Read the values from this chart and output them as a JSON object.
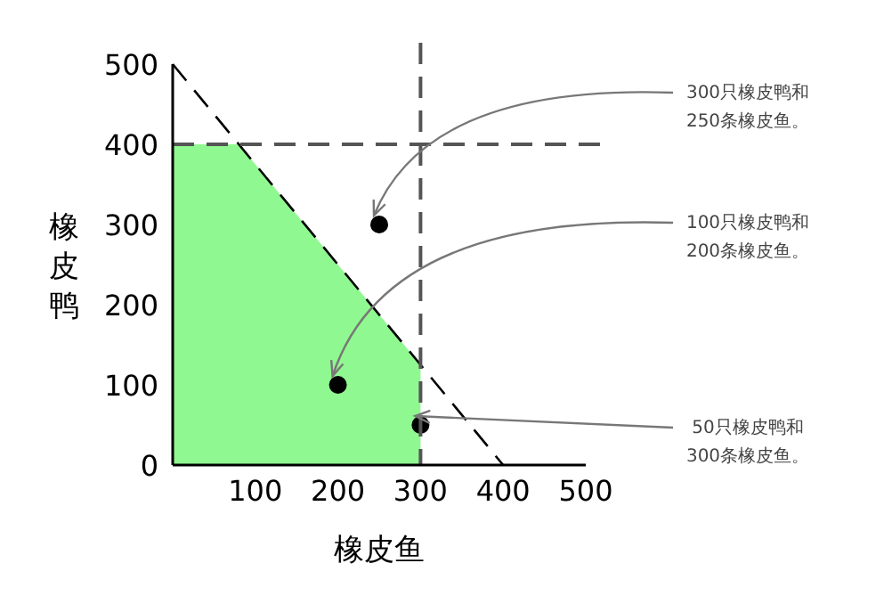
{
  "chart_data": {
    "type": "area",
    "xlabel": "橡皮鱼",
    "ylabel": "橡皮鸭",
    "xlim": [
      0,
      500
    ],
    "ylim": [
      0,
      500
    ],
    "xticks": [
      100,
      200,
      300,
      400,
      500
    ],
    "yticks": [
      0,
      100,
      200,
      300,
      400,
      500
    ],
    "series": [
      {
        "type": "area",
        "color": "#90f890",
        "x": [
          0,
          0,
          80,
          300,
          300
        ],
        "values": [
          0,
          400,
          400,
          125,
          0
        ]
      },
      {
        "type": "line",
        "line_style": "dashed",
        "color": "#000000",
        "x": [
          0,
          400
        ],
        "values": [
          500,
          0
        ]
      },
      {
        "type": "scatter",
        "marker": "circle",
        "color": "#000000",
        "x": [
          250,
          200,
          300
        ],
        "values": [
          300,
          100,
          50
        ]
      }
    ],
    "ref_lines": [
      {
        "axis": "x",
        "value": 300,
        "color": "#555555",
        "line_style": "dashed"
      },
      {
        "axis": "y",
        "value": 400,
        "color": "#555555",
        "line_style": "dashed"
      }
    ],
    "annotations": [
      {
        "text": "300只橡皮鸭和\n250条橡皮鱼。",
        "x": 250,
        "y": 300
      },
      {
        "text": "100只橡皮鸭和\n200条橡皮鱼。",
        "x": 200,
        "y": 100
      },
      {
        "text": "50只橡皮鸭和\n300条橡皮鱼。",
        "x": 300,
        "y": 50
      }
    ]
  }
}
